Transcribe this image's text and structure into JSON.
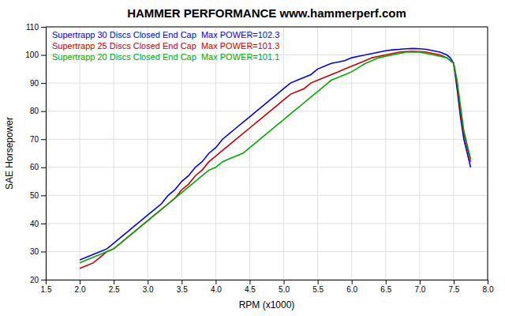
{
  "chart_data": {
    "type": "line",
    "title": "HAMMER PERFORMANCE www.hammerperf.com",
    "xlabel": "RPM (x1000)",
    "ylabel": "SAE Horsepower",
    "xlim": [
      1.5,
      8.0
    ],
    "ylim": [
      20,
      110
    ],
    "xticks": [
      1.5,
      {
        "value": 2.0,
        "label": "2.0"
      },
      2.5,
      {
        "value": 3.0,
        "label": "3.0"
      },
      3.5,
      {
        "value": 4.0,
        "label": "4.0"
      },
      4.5,
      {
        "value": 5.0,
        "label": "5.0"
      },
      5.5,
      {
        "value": 6.0,
        "label": "6.0"
      },
      6.5,
      {
        "value": 7.0,
        "label": "7.0"
      },
      7.5,
      {
        "value": 8.0,
        "label": "8.0"
      }
    ],
    "yticks": [
      20,
      30,
      40,
      50,
      60,
      70,
      80,
      90,
      100,
      110
    ],
    "grid": true,
    "legend": "top-left",
    "x": [
      2.0,
      2.1,
      2.2,
      2.3,
      2.4,
      2.5,
      2.6,
      2.7,
      2.8,
      2.9,
      3.0,
      3.1,
      3.2,
      3.3,
      3.4,
      3.5,
      3.6,
      3.7,
      3.8,
      3.9,
      4.0,
      4.1,
      4.2,
      4.3,
      4.4,
      4.5,
      4.6,
      4.7,
      4.8,
      4.9,
      5.0,
      5.1,
      5.2,
      5.3,
      5.4,
      5.5,
      5.6,
      5.7,
      5.8,
      5.9,
      6.0,
      6.1,
      6.2,
      6.3,
      6.4,
      6.5,
      6.6,
      6.7,
      6.8,
      6.9,
      7.0,
      7.1,
      7.2,
      7.3,
      7.4,
      7.45,
      7.5,
      7.55,
      7.6,
      7.65,
      7.7,
      7.75
    ],
    "series": [
      {
        "name": "Supertrapp 30 Discs Closed End Cap  Max POWER=102.3",
        "color": "#0000ff",
        "values": [
          27,
          28,
          29,
          30,
          31,
          33,
          35,
          37,
          39,
          41,
          43,
          45,
          47,
          50,
          52,
          55,
          57,
          60,
          62,
          65,
          67,
          70,
          72,
          74,
          76,
          78,
          80,
          82,
          84,
          86,
          88,
          90,
          91,
          92,
          93,
          95,
          96,
          97,
          97.5,
          98,
          99,
          99.5,
          100,
          100.5,
          101,
          101.5,
          101.8,
          102,
          102.2,
          102.3,
          102.2,
          102,
          101.5,
          101,
          100,
          99,
          97,
          88,
          78,
          70,
          65,
          60
        ]
      },
      {
        "name": "Supertrapp 25 Discs Closed End Cap  Max POWER=101.3",
        "color": "#cc0000",
        "values": [
          24,
          25,
          26,
          28,
          30,
          31,
          33,
          35,
          37,
          39,
          41,
          43,
          45,
          47,
          49,
          52,
          54,
          57,
          59,
          62,
          64,
          66,
          68,
          70,
          72,
          74,
          76,
          78,
          80,
          82,
          84,
          86,
          87,
          88,
          90,
          91,
          92,
          93,
          94,
          95,
          96,
          97,
          98,
          99,
          99.5,
          100,
          100.5,
          101,
          101.2,
          101.3,
          101.2,
          101,
          100.5,
          100,
          99,
          98,
          97,
          90,
          80,
          72,
          67,
          62
        ]
      },
      {
        "name": "Supertrapp 20 Discs Closed End Cap  Max POWER=101.1",
        "color": "#00aa00",
        "values": [
          26,
          27,
          28,
          29,
          30,
          31,
          33,
          35,
          37,
          39,
          41,
          43,
          45,
          47,
          49,
          51,
          53,
          55,
          57,
          59,
          60,
          62,
          63,
          64,
          65,
          67,
          69,
          71,
          73,
          75,
          77,
          79,
          81,
          83,
          85,
          87,
          89,
          91,
          92,
          93,
          94,
          95.5,
          97,
          98,
          99,
          99.5,
          100,
          100.5,
          101,
          101.1,
          101,
          100.5,
          100,
          99.5,
          99,
          98,
          97,
          91,
          82,
          73,
          68,
          63
        ]
      }
    ]
  }
}
